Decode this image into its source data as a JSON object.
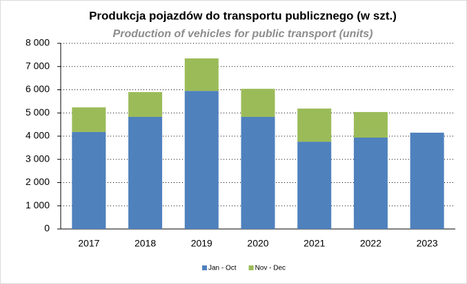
{
  "chart_data": {
    "type": "stacked_bar",
    "title": "Produkcja pojazdów do transportu publicznego (w szt.)",
    "subtitle": "Production of vehicles for public transport  (units)",
    "categories": [
      "2017",
      "2018",
      "2019",
      "2020",
      "2021",
      "2022",
      "2023"
    ],
    "series": [
      {
        "name": "Jan - Oct",
        "color": "#4f81bd",
        "values": [
          4180,
          4830,
          5950,
          4830,
          3760,
          3940,
          4150
        ]
      },
      {
        "name": "Nov - Dec",
        "color": "#9bbb59",
        "values": [
          1060,
          1070,
          1400,
          1210,
          1430,
          1100,
          null
        ]
      }
    ],
    "ylim": [
      0,
      8000
    ],
    "yticks": [
      0,
      {
        "value": 1000,
        "label": "1 000"
      },
      {
        "value": 2000,
        "label": "2 000"
      },
      {
        "value": 3000,
        "label": "3 000"
      },
      {
        "value": 4000,
        "label": "4 000"
      },
      {
        "value": 5000,
        "label": "5 000"
      },
      {
        "value": 6000,
        "label": "6 000"
      },
      {
        "value": 7000,
        "label": "7 000"
      },
      {
        "value": 8000,
        "label": "8 000"
      }
    ],
    "grid": true,
    "legend": "bottom"
  }
}
